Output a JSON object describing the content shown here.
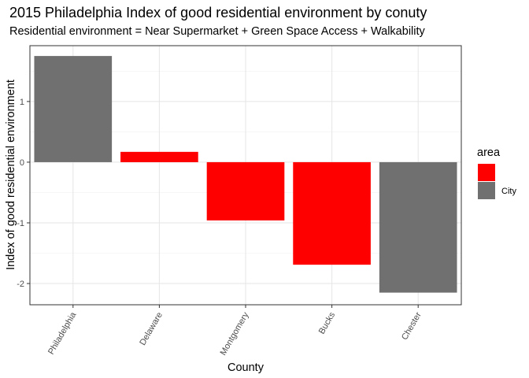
{
  "chart_data": {
    "type": "bar",
    "title": "2015 Philadelphia Index of good residential environment by conuty",
    "subtitle": "Residential environment = Near Supermarket + Green Space Access + Walkability",
    "xlabel": "County",
    "ylabel": "Index of good residential environment",
    "categories": [
      "Philadelphia",
      "Delaware",
      "Montgomery",
      "Bucks",
      "Chester"
    ],
    "values": [
      1.75,
      0.17,
      -0.96,
      -1.69,
      -2.15
    ],
    "area": [
      "City",
      "",
      "",
      "",
      "City"
    ],
    "ylim": [
      -2.35,
      1.92
    ],
    "yticks": [
      -2,
      -1,
      0,
      1
    ],
    "ytick_labels": [
      "-2",
      "-1",
      "0",
      "1"
    ],
    "grid": true,
    "legend": {
      "title": "area",
      "placement": "right",
      "entries": [
        {
          "label": "",
          "color": "#FF0000"
        },
        {
          "label": "City",
          "color": "#707070"
        }
      ]
    },
    "colors": {
      "City": "#707070",
      "": "#FF0000"
    }
  }
}
